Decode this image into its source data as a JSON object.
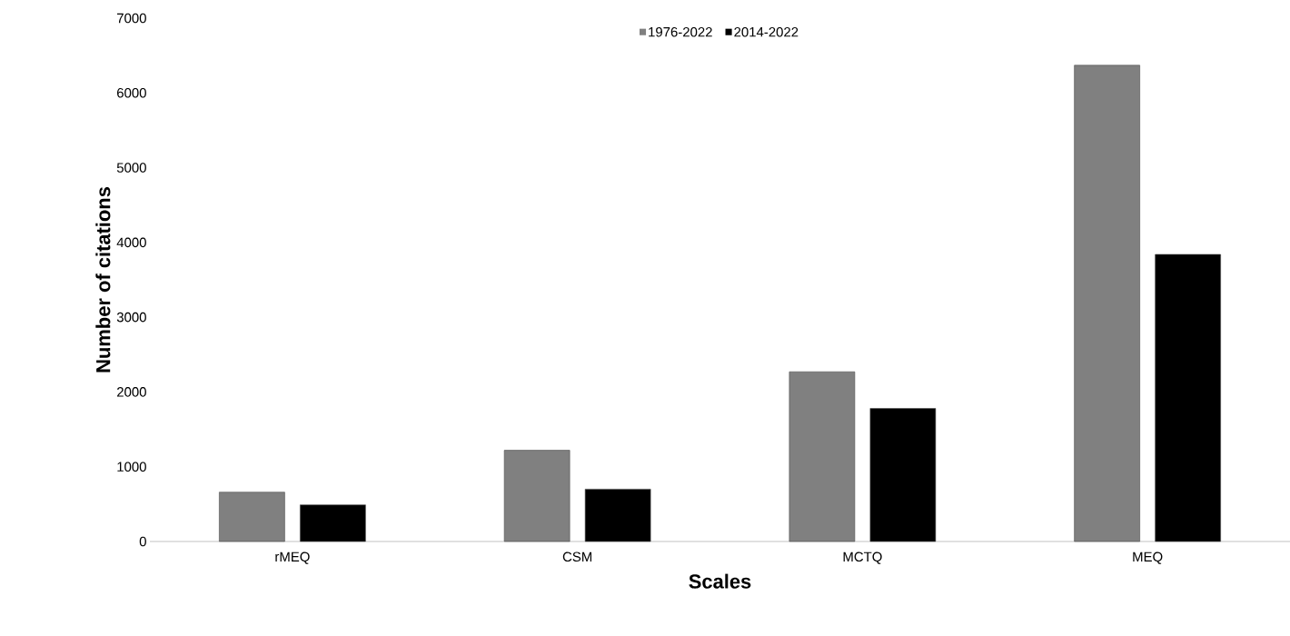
{
  "chart_data": {
    "type": "bar",
    "xlabel": "Scales",
    "ylabel": "Number of citations",
    "categories": [
      "rMEQ",
      "CSM",
      "MCTQ",
      "MEQ"
    ],
    "series": [
      {
        "name": "1976-2022",
        "color": "#808080",
        "values": [
          660,
          1220,
          2270,
          6370
        ]
      },
      {
        "name": "2014-2022",
        "color": "#000000",
        "values": [
          490,
          700,
          1780,
          3840
        ]
      }
    ],
    "ylim": [
      0,
      7000
    ],
    "yticks": [
      0,
      1000,
      2000,
      3000,
      4000,
      5000,
      6000,
      7000
    ],
    "grid": false,
    "legend": "top"
  }
}
